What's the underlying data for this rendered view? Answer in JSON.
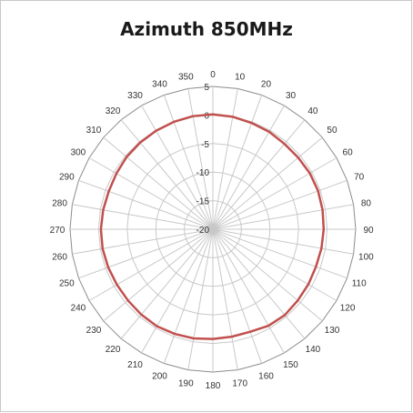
{
  "chart_data": {
    "type": "radar",
    "title": "Azimuth 850MHz",
    "angles": [
      0,
      10,
      20,
      30,
      40,
      50,
      60,
      70,
      80,
      90,
      100,
      110,
      120,
      130,
      140,
      150,
      160,
      170,
      180,
      190,
      200,
      210,
      220,
      230,
      240,
      250,
      260,
      270,
      280,
      290,
      300,
      310,
      320,
      330,
      340,
      350
    ],
    "series": [
      {
        "values": [
          0.1,
          0.0,
          -0.2,
          -0.3,
          -0.5,
          -0.5,
          -0.4,
          -0.4,
          -0.5,
          -0.6,
          -0.7,
          -0.8,
          -0.7,
          -0.6,
          -0.4,
          -0.5,
          -0.9,
          -0.9,
          -0.8,
          -0.6,
          -0.5,
          -0.4,
          -0.5,
          -0.6,
          -0.6,
          -0.5,
          -0.4,
          -0.4,
          -0.5,
          -0.6,
          -0.5,
          -0.3,
          -0.2,
          -0.1,
          0.0,
          0.1
        ],
        "color": "#c0504d"
      }
    ],
    "radial_axis": {
      "min": -20,
      "max": 5,
      "ticks": [
        5,
        0,
        -5,
        -10,
        -15,
        -20
      ]
    },
    "grid": true,
    "legend": "none"
  }
}
